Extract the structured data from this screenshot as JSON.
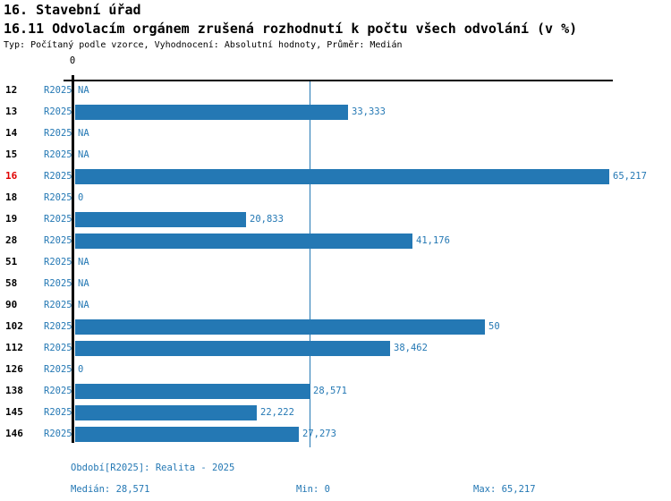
{
  "page": {
    "title": "16. Stavební úřad",
    "subtitle": "16.11 Odvolacím orgánem zrušená rozhodnutí k počtu všech odvolání (v %)",
    "meta": "Typ: Počítaný podle vzorce, Vyhodnocení: Absolutní hodnoty, Průměr: Medián"
  },
  "chart_data": {
    "type": "bar",
    "orientation": "horizontal",
    "title": "16. Stavební úřad",
    "subtitle": "16.11 Odvolacím orgánem zrušená rozhodnutí k počtu všech odvolání (v %)",
    "xlabel": "",
    "ylabel": "",
    "x_axis": {
      "zero_tick_label": "0",
      "min": 0,
      "max": 65.217,
      "grid": false
    },
    "median_value": 28.571,
    "series_label": "R2025",
    "highlighted_category": "16",
    "categories": [
      "12",
      "13",
      "14",
      "15",
      "16",
      "18",
      "19",
      "28",
      "51",
      "58",
      "90",
      "102",
      "112",
      "126",
      "138",
      "145",
      "146"
    ],
    "rows": [
      {
        "category": "12",
        "period": "R2025",
        "value": null,
        "label": "NA"
      },
      {
        "category": "13",
        "period": "R2025",
        "value": 33.333,
        "label": "33,333"
      },
      {
        "category": "14",
        "period": "R2025",
        "value": null,
        "label": "NA"
      },
      {
        "category": "15",
        "period": "R2025",
        "value": null,
        "label": "NA"
      },
      {
        "category": "16",
        "period": "R2025",
        "value": 65.217,
        "label": "65,217"
      },
      {
        "category": "18",
        "period": "R2025",
        "value": 0,
        "label": "0"
      },
      {
        "category": "19",
        "period": "R2025",
        "value": 20.833,
        "label": "20,833"
      },
      {
        "category": "28",
        "period": "R2025",
        "value": 41.176,
        "label": "41,176"
      },
      {
        "category": "51",
        "period": "R2025",
        "value": null,
        "label": "NA"
      },
      {
        "category": "58",
        "period": "R2025",
        "value": null,
        "label": "NA"
      },
      {
        "category": "90",
        "period": "R2025",
        "value": null,
        "label": "NA"
      },
      {
        "category": "102",
        "period": "R2025",
        "value": 50,
        "label": "50"
      },
      {
        "category": "112",
        "period": "R2025",
        "value": 38.462,
        "label": "38,462"
      },
      {
        "category": "126",
        "period": "R2025",
        "value": 0,
        "label": "0"
      },
      {
        "category": "138",
        "period": "R2025",
        "value": 28.571,
        "label": "28,571"
      },
      {
        "category": "145",
        "period": "R2025",
        "value": 22.222,
        "label": "22,222"
      },
      {
        "category": "146",
        "period": "R2025",
        "value": 27.273,
        "label": "27,273"
      }
    ],
    "footer": {
      "period": "Období[R2025]: Realita - 2025",
      "median": "Medián: 28,571",
      "min": "Min: 0",
      "max": "Max: 65,217"
    },
    "colors": {
      "bar": "#2478b4",
      "text_blue": "#2478b4",
      "highlight_red": "#e00000",
      "axis": "#000000"
    }
  }
}
